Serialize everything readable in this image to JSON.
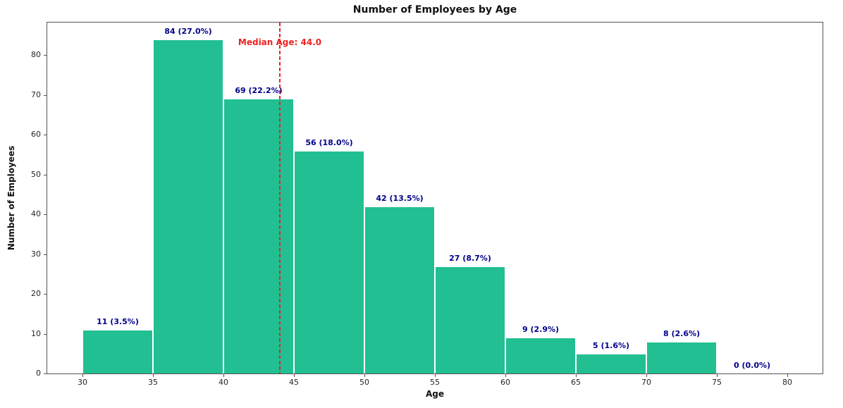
{
  "chart_data": {
    "type": "bar",
    "subtype": "histogram",
    "title": "Number of Employees by Age",
    "xlabel": "Age",
    "ylabel": "Number of Employees",
    "bin_edges": [
      30,
      35,
      40,
      45,
      50,
      55,
      60,
      65,
      70,
      75,
      80
    ],
    "values": [
      11,
      84,
      69,
      56,
      42,
      27,
      9,
      5,
      8,
      0
    ],
    "bar_labels": [
      "11 (3.5%)",
      "84 (27.0%)",
      "69 (22.2%)",
      "56 (18.0%)",
      "42 (13.5%)",
      "27 (8.7%)",
      "9 (2.9%)",
      "5 (1.6%)",
      "8 (2.6%)",
      "0 (0.0%)"
    ],
    "x_ticks": [
      30,
      35,
      40,
      45,
      50,
      55,
      60,
      65,
      70,
      75,
      80
    ],
    "y_ticks": [
      0,
      10,
      20,
      30,
      40,
      50,
      60,
      70,
      80
    ],
    "xlim": [
      27.5,
      82.5
    ],
    "ylim": [
      0,
      88.2
    ],
    "grid": false,
    "legend": null,
    "median_line": {
      "x": 44.0,
      "label": "Median Age: 44.0"
    },
    "colors": {
      "bar_fill": "#21bf92",
      "bar_edge": "#ffffff",
      "bar_label": "#00008b",
      "median": "#ee2222",
      "axis": "#555555",
      "tick_label": "#262626",
      "title": "#111111"
    }
  }
}
